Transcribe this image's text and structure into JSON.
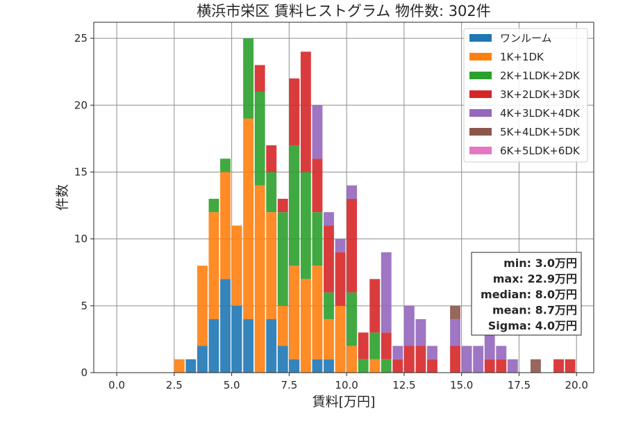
{
  "chart_data": {
    "type": "bar",
    "stacked": true,
    "title": "横浜市栄区 賃料ヒストグラム 物件数: 302件",
    "xlabel": "賃料[万円]",
    "ylabel": "件数",
    "xlim": [
      -1.0,
      20.75
    ],
    "ylim": [
      0,
      26.2
    ],
    "xticks": [
      0.0,
      2.5,
      5.0,
      7.5,
      10.0,
      12.5,
      15.0,
      17.5,
      20.0
    ],
    "xtick_labels": [
      "0.0",
      "2.5",
      "5.0",
      "7.5",
      "10.0",
      "12.5",
      "15.0",
      "17.5",
      "20.0"
    ],
    "yticks": [
      0,
      5,
      10,
      15,
      20,
      25
    ],
    "ytick_labels": [
      "0",
      "5",
      "10",
      "15",
      "20",
      "25"
    ],
    "grid": true,
    "bin_width": 0.5,
    "legend_position": "top-right",
    "series": [
      {
        "name": "ワンルーム",
        "color": "#1f77b4",
        "bins": [
          [
            3.0,
            1
          ],
          [
            3.5,
            2
          ],
          [
            4.0,
            4
          ],
          [
            4.5,
            7
          ],
          [
            5.0,
            5
          ],
          [
            5.5,
            4
          ],
          [
            6.5,
            4
          ],
          [
            7.0,
            2
          ],
          [
            7.5,
            1
          ],
          [
            8.5,
            1
          ],
          [
            9.0,
            1
          ]
        ]
      },
      {
        "name": "1K+1DK",
        "color": "#ff7f0e",
        "bins": [
          [
            2.5,
            1
          ],
          [
            3.5,
            6
          ],
          [
            4.0,
            8
          ],
          [
            4.5,
            8
          ],
          [
            5.0,
            6
          ],
          [
            5.5,
            15
          ],
          [
            6.0,
            14
          ],
          [
            6.5,
            8
          ],
          [
            7.0,
            3
          ],
          [
            7.5,
            7
          ],
          [
            8.0,
            7
          ],
          [
            8.5,
            7
          ],
          [
            9.0,
            3
          ],
          [
            9.5,
            5
          ],
          [
            10.0,
            2
          ],
          [
            11.0,
            1
          ]
        ]
      },
      {
        "name": "2K+1LDK+2DK",
        "color": "#2ca02c",
        "bins": [
          [
            4.0,
            1
          ],
          [
            4.5,
            1
          ],
          [
            5.5,
            6
          ],
          [
            6.0,
            7
          ],
          [
            6.5,
            3
          ],
          [
            7.0,
            7
          ],
          [
            7.5,
            9
          ],
          [
            8.0,
            8
          ],
          [
            8.5,
            4
          ],
          [
            9.0,
            2
          ],
          [
            10.0,
            4
          ],
          [
            10.5,
            1
          ],
          [
            11.0,
            2
          ],
          [
            11.5,
            1
          ]
        ]
      },
      {
        "name": "3K+2LDK+3DK",
        "color": "#d62728",
        "bins": [
          [
            6.0,
            2
          ],
          [
            6.5,
            2
          ],
          [
            7.0,
            1
          ],
          [
            7.5,
            5
          ],
          [
            8.0,
            9
          ],
          [
            8.5,
            4
          ],
          [
            9.0,
            5
          ],
          [
            9.5,
            4
          ],
          [
            10.0,
            7
          ],
          [
            10.5,
            2
          ],
          [
            11.0,
            4
          ],
          [
            11.5,
            2
          ],
          [
            12.0,
            1
          ],
          [
            12.5,
            2
          ],
          [
            13.0,
            2
          ],
          [
            13.5,
            1
          ],
          [
            14.5,
            2
          ],
          [
            16.0,
            1
          ],
          [
            16.5,
            1
          ],
          [
            19.0,
            1
          ],
          [
            19.5,
            1
          ]
        ]
      },
      {
        "name": "4K+3LDK+4DK",
        "color": "#9467bd",
        "bins": [
          [
            8.5,
            4
          ],
          [
            9.0,
            1
          ],
          [
            9.5,
            1
          ],
          [
            10.0,
            1
          ],
          [
            11.5,
            6
          ],
          [
            12.0,
            1
          ],
          [
            12.5,
            3
          ],
          [
            13.0,
            2
          ],
          [
            13.5,
            1
          ],
          [
            14.5,
            2
          ],
          [
            15.0,
            2
          ],
          [
            15.5,
            2
          ],
          [
            16.0,
            3
          ],
          [
            16.5,
            1
          ],
          [
            17.0,
            1
          ]
        ]
      },
      {
        "name": "5K+4LDK+5DK",
        "color": "#8c564b",
        "bins": [
          [
            14.5,
            1
          ],
          [
            18.0,
            1
          ]
        ]
      },
      {
        "name": "6K+5LDK+6DK",
        "color": "#e377c2",
        "bins": []
      }
    ],
    "stats": [
      "min: 3.0万円",
      "max: 22.9万円",
      "median: 8.0万円",
      "mean: 8.7万円",
      "Sigma: 4.0万円"
    ]
  }
}
